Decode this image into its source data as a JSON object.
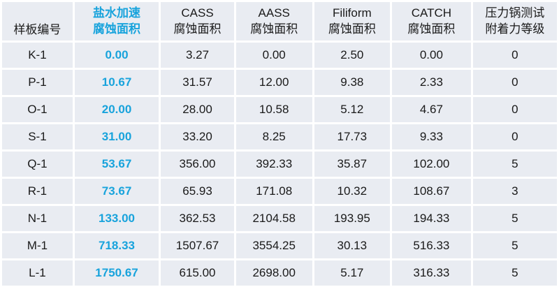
{
  "colors": {
    "accent": "#18a3dc",
    "row_background": "#e9ecf2",
    "text": "#1a1a1a",
    "gridline": "#ffffff"
  },
  "table": {
    "columns": [
      {
        "key": "sample",
        "lines": [
          "样板编号"
        ],
        "accent": false
      },
      {
        "key": "salt",
        "lines": [
          "盐水加速",
          "腐蚀面积"
        ],
        "accent": true
      },
      {
        "key": "cass",
        "lines": [
          "CASS",
          "腐蚀面积"
        ],
        "accent": false
      },
      {
        "key": "aass",
        "lines": [
          "AASS",
          "腐蚀面积"
        ],
        "accent": false
      },
      {
        "key": "filiform",
        "lines": [
          "Filiform",
          "腐蚀面积"
        ],
        "accent": false
      },
      {
        "key": "catch",
        "lines": [
          "CATCH",
          "腐蚀面积"
        ],
        "accent": false
      },
      {
        "key": "pot",
        "lines": [
          "压力锅测试",
          "附着力等级"
        ],
        "accent": false
      }
    ],
    "rows": [
      {
        "sample": "K-1",
        "salt": "0.00",
        "cass": "3.27",
        "aass": "0.00",
        "filiform": "2.50",
        "catch": "0.00",
        "pot": "0"
      },
      {
        "sample": "P-1",
        "salt": "10.67",
        "cass": "31.57",
        "aass": "12.00",
        "filiform": "9.38",
        "catch": "2.33",
        "pot": "0"
      },
      {
        "sample": "O-1",
        "salt": "20.00",
        "cass": "28.00",
        "aass": "10.58",
        "filiform": "5.12",
        "catch": "4.67",
        "pot": "0"
      },
      {
        "sample": "S-1",
        "salt": "31.00",
        "cass": "33.20",
        "aass": "8.25",
        "filiform": "17.73",
        "catch": "9.33",
        "pot": "0"
      },
      {
        "sample": "Q-1",
        "salt": "53.67",
        "cass": "356.00",
        "aass": "392.33",
        "filiform": "35.87",
        "catch": "102.00",
        "pot": "5"
      },
      {
        "sample": "R-1",
        "salt": "73.67",
        "cass": "65.93",
        "aass": "171.08",
        "filiform": "10.32",
        "catch": "108.67",
        "pot": "3"
      },
      {
        "sample": "N-1",
        "salt": "133.00",
        "cass": "362.53",
        "aass": "2104.58",
        "filiform": "193.95",
        "catch": "194.33",
        "pot": "5"
      },
      {
        "sample": "M-1",
        "salt": "718.33",
        "cass": "1507.67",
        "aass": "3554.25",
        "filiform": "30.13",
        "catch": "516.33",
        "pot": "5"
      },
      {
        "sample": "L-1",
        "salt": "1750.67",
        "cass": "615.00",
        "aass": "2698.00",
        "filiform": "5.17",
        "catch": "316.33",
        "pot": "5"
      }
    ]
  }
}
